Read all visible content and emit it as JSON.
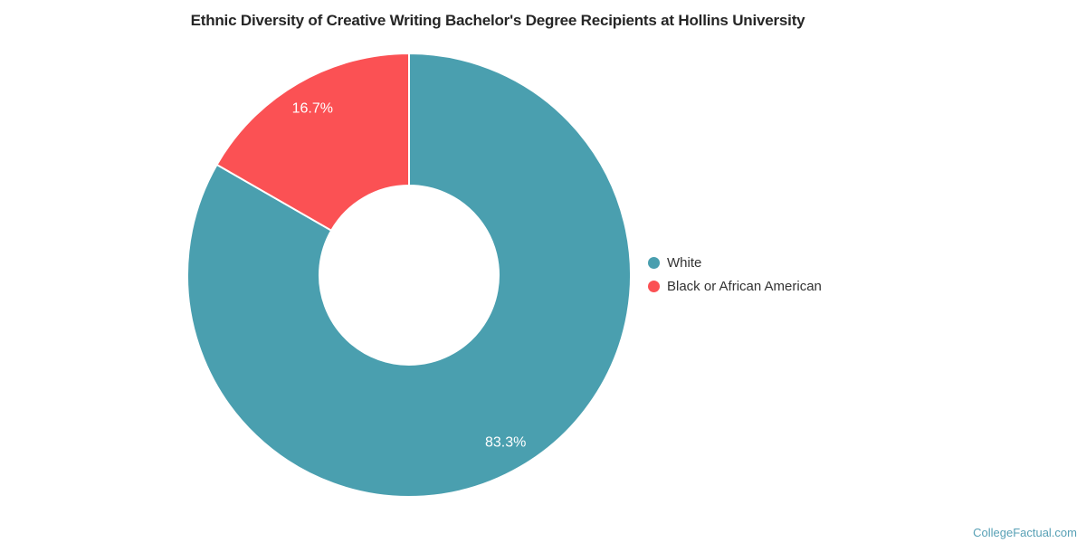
{
  "title": "Ethnic Diversity of Creative Writing Bachelor's Degree Recipients at Hollins University",
  "watermark": "CollegeFactual.com",
  "chart_data": {
    "type": "pie",
    "subtype": "donut",
    "title": "Ethnic Diversity of Creative Writing Bachelor's Degree Recipients at Hollins University",
    "series": [
      {
        "name": "White",
        "value": 83.3,
        "label": "83.3%",
        "color": "#4a9faf"
      },
      {
        "name": "Black or African American",
        "value": 16.7,
        "label": "16.7%",
        "color": "#fb5154"
      }
    ],
    "start_angle_deg": 0,
    "direction": "clockwise",
    "center": {
      "x": 452,
      "y": 304
    },
    "outer_radius": 245,
    "inner_radius": 99,
    "label_radius": 213,
    "slice_border_color": "#ffffff",
    "slice_border_width": 2,
    "legend_position": "right"
  },
  "legend": {
    "items": [
      {
        "label": "White",
        "color": "#4a9faf"
      },
      {
        "label": "Black or African American",
        "color": "#fb5154"
      }
    ]
  }
}
